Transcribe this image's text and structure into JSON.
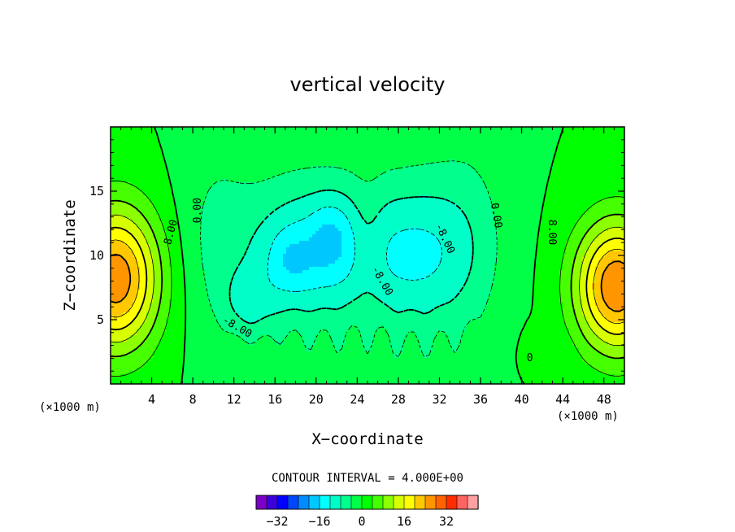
{
  "chart_data": {
    "type": "heatmap",
    "title": "vertical velocity",
    "xlabel": "X−coordinate",
    "ylabel": "Z−coordinate",
    "x_unit": "(×1000 m)",
    "y_unit": "(×1000 m)",
    "xlim": [
      0,
      50
    ],
    "ylim": [
      0,
      20
    ],
    "x_ticks": [
      4,
      8,
      12,
      16,
      20,
      24,
      28,
      32,
      36,
      40,
      44,
      48
    ],
    "y_ticks": [
      5,
      10,
      15
    ],
    "contour_interval_text": "CONTOUR INTERVAL = 4.000E+00",
    "contour_labels": [
      {
        "text": "0.00",
        "x": 8.5,
        "y": 13.5,
        "angle": -90
      },
      {
        "text": "8.00",
        "x": 5.9,
        "y": 11.8,
        "angle": -75
      },
      {
        "text": "8.00",
        "x": 42.9,
        "y": 11.8,
        "angle": 90
      },
      {
        "text": "0.00",
        "x": 37.5,
        "y": 13.1,
        "angle": 80
      },
      {
        "text": "-8.00",
        "x": 32.5,
        "y": 11.3,
        "angle": 65
      },
      {
        "text": "-8.00",
        "x": 26.4,
        "y": 8.0,
        "angle": 60
      },
      {
        "text": "-8.00",
        "x": 12.3,
        "y": 4.4,
        "angle": 30
      },
      {
        "text": "0",
        "x": 40.8,
        "y": 2.0,
        "angle": 0
      }
    ],
    "colorbar": {
      "levels": [
        -36,
        -32,
        -28,
        -24,
        -20,
        -16,
        -12,
        -8,
        -4,
        0,
        4,
        8,
        12,
        16,
        20,
        24,
        28,
        32,
        36
      ],
      "tick_labels": [
        "−32",
        "−16",
        "0",
        "16",
        "32"
      ],
      "tick_values": [
        -32,
        -16,
        0,
        16,
        32
      ],
      "colors": [
        "#7d00c8",
        "#3c00dc",
        "#0000ff",
        "#0046ff",
        "#008cff",
        "#00c8ff",
        "#00ffff",
        "#00ffc8",
        "#00ff8c",
        "#00ff46",
        "#00ff00",
        "#46ff00",
        "#8cff00",
        "#d7ff00",
        "#ffff00",
        "#ffc800",
        "#ff9600",
        "#ff6400",
        "#ff2d00",
        "#ff6464",
        "#ffa0a0"
      ]
    },
    "features": [
      {
        "name": "updraft-left",
        "x": 0.5,
        "y": 8.2,
        "max": 25
      },
      {
        "name": "updraft-right",
        "x": 49.0,
        "y": 7.5,
        "max": 26
      },
      {
        "name": "downdraft-center",
        "x": 20.0,
        "y": 10.0,
        "min": -16
      },
      {
        "name": "downdraft-center-right",
        "x": 30.0,
        "y": 10.0,
        "min": -13
      }
    ]
  }
}
